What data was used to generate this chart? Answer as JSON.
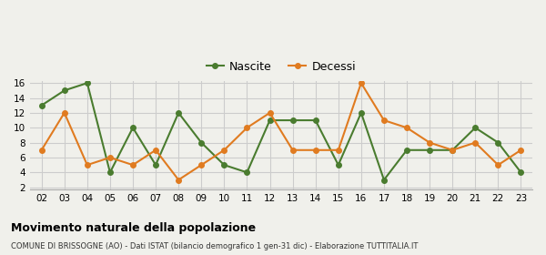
{
  "years": [
    2,
    3,
    4,
    5,
    6,
    7,
    8,
    9,
    10,
    11,
    12,
    13,
    14,
    15,
    16,
    17,
    18,
    19,
    20,
    21,
    22,
    23
  ],
  "nascite": [
    13,
    15,
    16,
    4,
    10,
    5,
    12,
    8,
    5,
    4,
    11,
    11,
    11,
    5,
    12,
    3,
    7,
    7,
    7,
    10,
    8,
    4
  ],
  "decessi": [
    7,
    12,
    5,
    6,
    5,
    7,
    3,
    5,
    7,
    10,
    12,
    7,
    7,
    7,
    16,
    11,
    10,
    8,
    7,
    8,
    5,
    7
  ],
  "nascite_color": "#4a7c2f",
  "decessi_color": "#e07b20",
  "bg_color": "#f0f0eb",
  "grid_color": "#cccccc",
  "title": "Movimento naturale della popolazione",
  "subtitle": "COMUNE DI BRISSOGNE (AO) - Dati ISTAT (bilancio demografico 1 gen-31 dic) - Elaborazione TUTTITALIA.IT",
  "legend_nascite": "Nascite",
  "legend_decessi": "Decessi",
  "ylim_min": 2,
  "ylim_max": 16,
  "yticks": [
    2,
    4,
    6,
    8,
    10,
    12,
    14,
    16
  ]
}
